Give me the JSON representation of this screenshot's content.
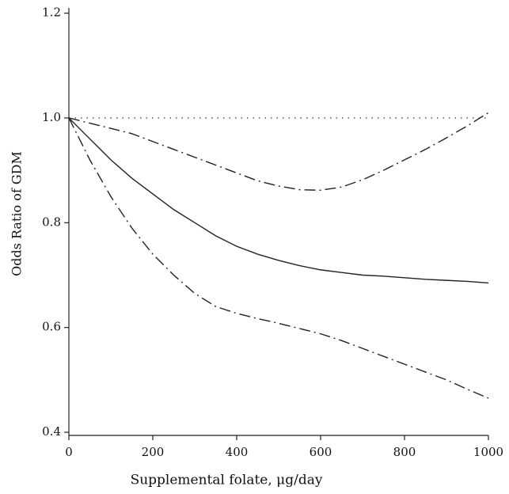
{
  "chart_data": {
    "type": "line",
    "x_label": "Supplemental folate, μg/day",
    "y_label": "Odds Ratio of GDM",
    "x": [
      0,
      50,
      100,
      150,
      200,
      250,
      300,
      350,
      400,
      450,
      500,
      550,
      600,
      650,
      700,
      750,
      800,
      850,
      900,
      950,
      1000
    ],
    "series": [
      {
        "color": "#222222",
        "dash": "solid",
        "values": [
          1.0,
          0.96,
          0.92,
          0.885,
          0.855,
          0.825,
          0.8,
          0.775,
          0.755,
          0.74,
          0.728,
          0.718,
          0.71,
          0.705,
          0.7,
          0.698,
          0.695,
          0.692,
          0.69,
          0.688,
          0.685
        ]
      },
      {
        "color": "#222222",
        "dash": "dashdot",
        "values": [
          1.0,
          0.99,
          0.98,
          0.97,
          0.955,
          0.94,
          0.925,
          0.91,
          0.895,
          0.88,
          0.87,
          0.863,
          0.862,
          0.868,
          0.882,
          0.9,
          0.92,
          0.94,
          0.962,
          0.985,
          1.01
        ]
      },
      {
        "color": "#222222",
        "dash": "dashdot",
        "values": [
          1.0,
          0.92,
          0.85,
          0.79,
          0.74,
          0.7,
          0.665,
          0.64,
          0.627,
          0.617,
          0.608,
          0.598,
          0.588,
          0.575,
          0.56,
          0.545,
          0.53,
          0.515,
          0.5,
          0.482,
          0.465
        ]
      }
    ],
    "reference_line": 1,
    "xlim": [
      0,
      1000
    ],
    "xticks": [
      0,
      200,
      400,
      600,
      800,
      1000
    ],
    "ylim": [
      0.394,
      1.21
    ],
    "yticks": [
      0.4,
      0.6,
      0.8,
      {
        "value": 1,
        "label": "1.0"
      },
      1.2
    ]
  }
}
